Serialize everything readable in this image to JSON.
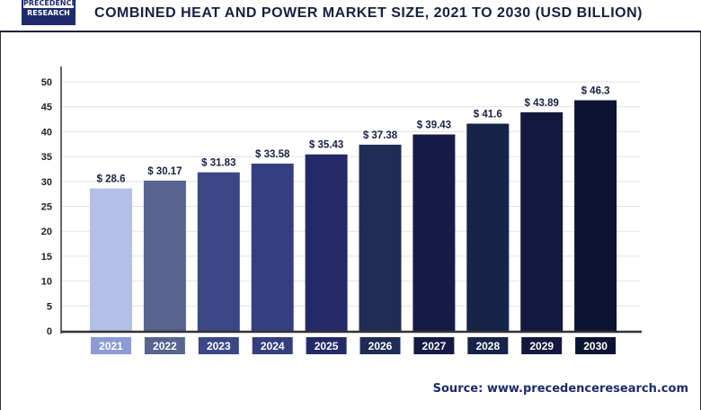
{
  "logo": {
    "line1": "PRECEDENCE",
    "line2": "RESEARCH"
  },
  "chart_data": {
    "type": "bar",
    "title": "COMBINED HEAT AND POWER MARKET SIZE, 2021 TO 2030 (USD BILLION)",
    "categories": [
      "2021",
      "2022",
      "2023",
      "2024",
      "2025",
      "2026",
      "2027",
      "2028",
      "2029",
      "2030"
    ],
    "values": [
      28.6,
      30.17,
      31.83,
      33.58,
      35.43,
      37.38,
      39.43,
      41.6,
      43.89,
      46.3
    ],
    "data_labels": [
      "$ 28.6",
      "$ 30.17",
      "$ 31.83",
      "$ 33.58",
      "$ 35.43",
      "$ 37.38",
      "$ 39.43",
      "$ 41.6",
      "$ 43.89",
      "$ 46.3"
    ],
    "ylim": [
      0,
      50
    ],
    "yticks": [
      0,
      5,
      10,
      15,
      20,
      25,
      30,
      35,
      40,
      45,
      50
    ],
    "grid": true,
    "xlabel": "",
    "ylabel": "",
    "colors": [
      "#b3bfe6",
      "#56648f",
      "#3c4785",
      "#343f80",
      "#242a68",
      "#1f2d55",
      "#161b46",
      "#16244a",
      "#14183e",
      "#0d1433"
    ],
    "label_colors": [
      "#8c9bd4",
      "#56648f",
      "#3c4785",
      "#343f80",
      "#242a68",
      "#1f2d55",
      "#161b46",
      "#16244a",
      "#14183e",
      "#0d1433"
    ]
  },
  "source": "Source: www.precedenceresearch.com"
}
